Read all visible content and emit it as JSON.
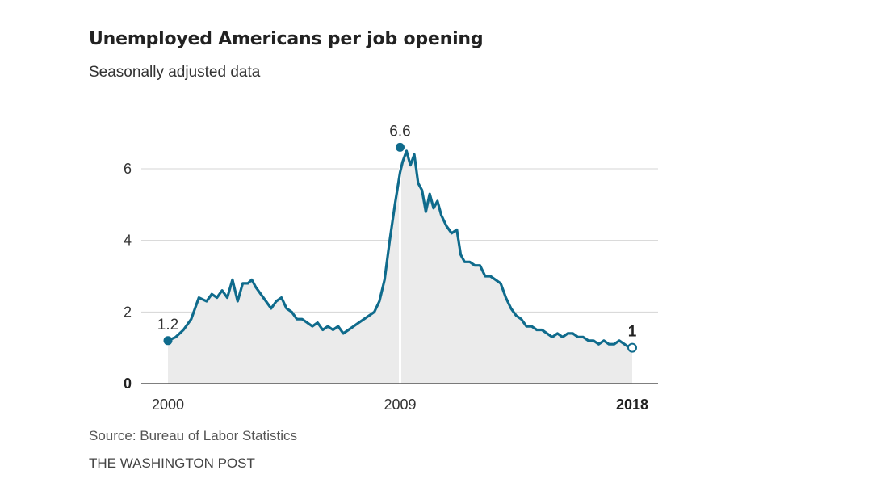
{
  "title": "Unemployed Americans per job opening",
  "subtitle": "Seasonally adjusted data",
  "source": "Source: Bureau of Labor Statistics",
  "publisher": "THE WASHINGTON POST",
  "colors": {
    "line": "#0f6b8c",
    "area": "#ebebeb",
    "grid": "#d5d5d5",
    "axis": "#555555",
    "marker_2009": "#ffffff"
  },
  "chart_data": {
    "type": "line",
    "title": "Unemployed Americans per job opening",
    "subtitle": "Seasonally adjusted data",
    "xlabel": "",
    "ylabel": "",
    "xlim": [
      2000.0,
      2018.5
    ],
    "ylim": [
      0,
      6.6
    ],
    "yticks": [
      0,
      2,
      4,
      6
    ],
    "xticks": [
      {
        "value": 2000,
        "label": "2000",
        "bold": false
      },
      {
        "value": 2009,
        "label": "2009",
        "bold": false
      },
      {
        "value": 2018,
        "label": "2018",
        "bold": true
      }
    ],
    "grid": true,
    "filled_area": true,
    "vertical_marker": 2009.0,
    "series": [
      {
        "x": [
          2000.0,
          2000.3,
          2000.6,
          2000.9,
          2001.2,
          2001.5,
          2001.7,
          2001.9,
          2002.1,
          2002.3,
          2002.5,
          2002.7,
          2002.9,
          2003.1,
          2003.25,
          2003.4,
          2003.6,
          2003.8,
          2004.0,
          2004.2,
          2004.4,
          2004.6,
          2004.8,
          2005.0,
          2005.2,
          2005.4,
          2005.6,
          2005.8,
          2006.0,
          2006.2,
          2006.4,
          2006.6,
          2006.8,
          2007.0,
          2007.2,
          2007.4,
          2007.6,
          2007.8,
          2008.0,
          2008.2,
          2008.4,
          2008.6,
          2008.8,
          2009.0,
          2009.1,
          2009.25,
          2009.4,
          2009.55,
          2009.7,
          2009.85,
          2010.0,
          2010.15,
          2010.3,
          2010.45,
          2010.6,
          2010.8,
          2011.0,
          2011.2,
          2011.35,
          2011.5,
          2011.7,
          2011.9,
          2012.1,
          2012.3,
          2012.5,
          2012.7,
          2012.9,
          2013.1,
          2013.3,
          2013.5,
          2013.7,
          2013.9,
          2014.1,
          2014.3,
          2014.5,
          2014.7,
          2014.9,
          2015.1,
          2015.3,
          2015.5,
          2015.7,
          2015.9,
          2016.1,
          2016.3,
          2016.5,
          2016.7,
          2016.9,
          2017.1,
          2017.3,
          2017.5,
          2017.7,
          2017.9,
          2018.0
        ],
        "y": [
          1.2,
          1.3,
          1.5,
          1.8,
          2.4,
          2.3,
          2.5,
          2.4,
          2.6,
          2.4,
          2.9,
          2.3,
          2.8,
          2.8,
          2.9,
          2.7,
          2.5,
          2.3,
          2.1,
          2.3,
          2.4,
          2.1,
          2.0,
          1.8,
          1.8,
          1.7,
          1.6,
          1.7,
          1.5,
          1.6,
          1.5,
          1.6,
          1.4,
          1.5,
          1.6,
          1.7,
          1.8,
          1.9,
          2.0,
          2.3,
          2.9,
          4.0,
          5.0,
          5.9,
          6.2,
          6.5,
          6.1,
          6.4,
          5.6,
          5.4,
          4.8,
          5.3,
          4.9,
          5.1,
          4.7,
          4.4,
          4.2,
          4.3,
          3.6,
          3.4,
          3.4,
          3.3,
          3.3,
          3.0,
          3.0,
          2.9,
          2.8,
          2.4,
          2.1,
          1.9,
          1.8,
          1.6,
          1.6,
          1.5,
          1.5,
          1.4,
          1.3,
          1.4,
          1.3,
          1.4,
          1.4,
          1.3,
          1.3,
          1.2,
          1.2,
          1.1,
          1.2,
          1.1,
          1.1,
          1.2,
          1.1,
          1.0,
          1.0
        ]
      }
    ],
    "annotations": [
      {
        "x": 2000.0,
        "y": 1.2,
        "label": "1.2",
        "marker": "filled"
      },
      {
        "x": 2009.0,
        "y": 6.6,
        "label": "6.6",
        "marker": "filled"
      },
      {
        "x": 2018.0,
        "y": 1.0,
        "label": "1",
        "marker": "open",
        "bold": true
      }
    ]
  }
}
